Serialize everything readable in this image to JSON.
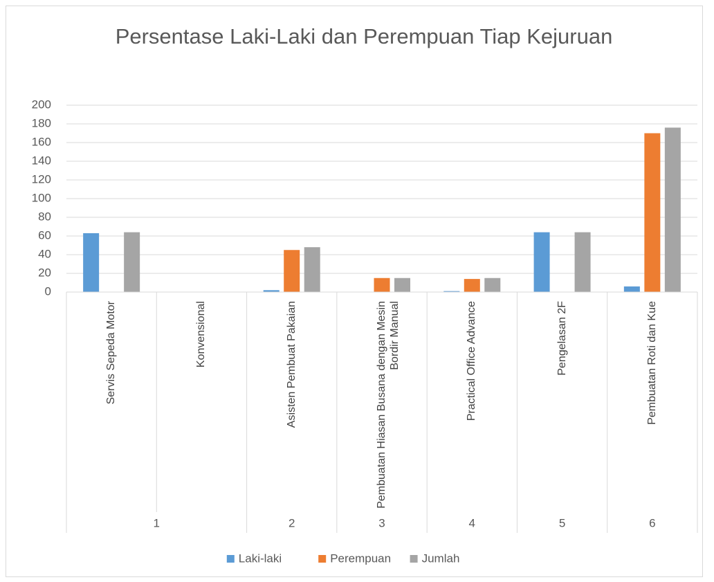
{
  "chart_data": {
    "type": "bar",
    "title": "Persentase Laki-Laki dan Perempuan Tiap Kejuruan",
    "categories": [
      {
        "group": "1",
        "name": "Servis Sepeda Motor"
      },
      {
        "group": "1",
        "name": "Konvensional"
      },
      {
        "group": "2",
        "name": "Asisten Pembuat Pakaian"
      },
      {
        "group": "3",
        "name": "Pembuatan Hiasan Busana dengan Mesin Bordir Manual"
      },
      {
        "group": "4",
        "name": "Practical Office Advance"
      },
      {
        "group": "5",
        "name": "Pengelasan 2F"
      },
      {
        "group": "6",
        "name": "Pembuatan Roti dan Kue"
      }
    ],
    "series": [
      {
        "name": "Laki-laki",
        "color": "#5b9bd5",
        "values": [
          63,
          0,
          2,
          0,
          1,
          64,
          6
        ]
      },
      {
        "name": "Perempuan",
        "color": "#ed7d31",
        "values": [
          0,
          0,
          45,
          15,
          14,
          0,
          170
        ]
      },
      {
        "name": "Jumlah",
        "color": "#a5a5a5",
        "values": [
          64,
          0,
          48,
          15,
          15,
          64,
          176
        ]
      }
    ],
    "ylim": [
      0,
      200
    ],
    "yticks": [
      0,
      20,
      40,
      60,
      80,
      100,
      120,
      140,
      160,
      180,
      200
    ],
    "grid": true,
    "legend": "bottom"
  }
}
